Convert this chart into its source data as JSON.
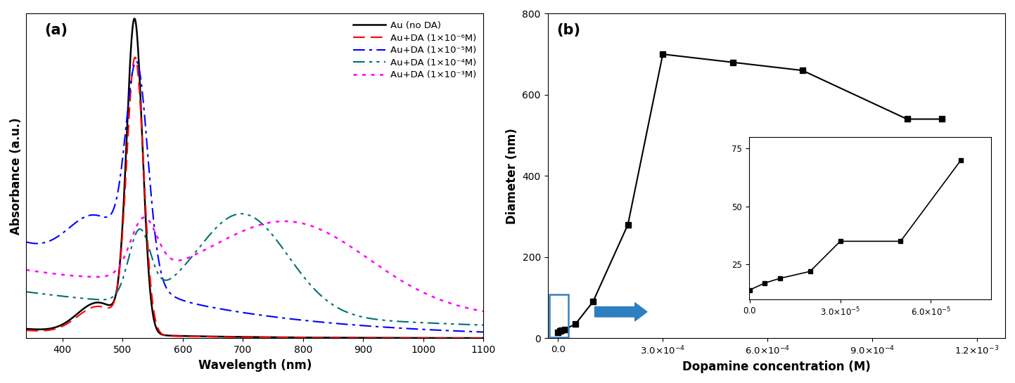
{
  "panel_a_label": "(a)",
  "panel_b_label": "(b)",
  "xlim_a": [
    340,
    1100
  ],
  "ylim_a": [
    0,
    1.05
  ],
  "xlabel_a": "Wavelength (nm)",
  "ylabel_a": "Absorbance (a.u.)",
  "xticks_a": [
    400,
    500,
    600,
    700,
    800,
    900,
    1000,
    1100
  ],
  "legend_entries": [
    "Au (no DA)",
    "Au+DA (1×10⁻⁶M)",
    "Au+DA (1×10⁻⁵M)",
    "Au+DA (1×10⁻⁴M)",
    "Au+DA (1×10⁻³M)"
  ],
  "line_colors_a": [
    "black",
    "red",
    "blue",
    "#007070",
    "magenta"
  ],
  "panel_b_main_x": [
    0,
    5e-06,
    1e-05,
    2e-05,
    5e-05,
    0.0001,
    0.0002,
    0.0003,
    0.0005,
    0.0007,
    0.001,
    0.0011
  ],
  "panel_b_main_y": [
    14,
    17,
    19,
    22,
    35,
    90,
    280,
    700,
    680,
    660,
    540,
    540
  ],
  "panel_b_inset_x": [
    0,
    5e-06,
    1e-05,
    2e-05,
    3e-05,
    5e-05,
    7e-05
  ],
  "panel_b_inset_y": [
    14,
    17,
    19,
    22,
    35,
    35,
    70
  ],
  "xlabel_b": "Dopamine concentration (M)",
  "ylabel_b": "Diameter (nm)",
  "ylim_b": [
    0,
    800
  ],
  "yticks_b": [
    0,
    200,
    400,
    600,
    800
  ],
  "arrow_color": "#2E7FBF",
  "rect_color": "#3A7FBF"
}
